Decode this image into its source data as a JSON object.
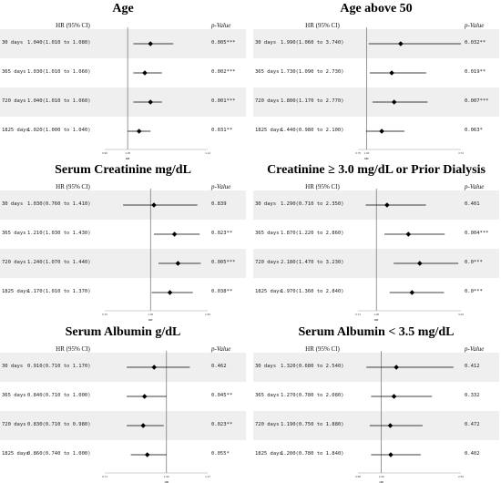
{
  "header": {
    "hr_label": "HR (95% CI)",
    "p_label": "p-Value"
  },
  "row_labels": [
    "30 days",
    "365 days",
    "720 days",
    "1825 days"
  ],
  "chart_data": [
    {
      "type": "forest",
      "title": "Age",
      "xlim": [
        0.96,
        1.14
      ],
      "xticks": [
        "0.96",
        "1.05",
        "1.14"
      ],
      "xlabel": "HR",
      "reference": 1.0,
      "rows": [
        {
          "label": "30 days",
          "hr": 1.04,
          "lo": 1.01,
          "hi": 1.08,
          "ci_text": "1.040(1.010 to 1.080)",
          "p": "0.005***"
        },
        {
          "label": "365 days",
          "hr": 1.03,
          "lo": 1.01,
          "hi": 1.06,
          "ci_text": "1.030(1.010 to 1.060)",
          "p": "0.002***"
        },
        {
          "label": "720 days",
          "hr": 1.04,
          "lo": 1.01,
          "hi": 1.06,
          "ci_text": "1.040(1.010 to 1.060)",
          "p": "0.001***"
        },
        {
          "label": "1825 days",
          "hr": 1.02,
          "lo": 1.0,
          "hi": 1.04,
          "ci_text": "1.020(1.000 to 1.040)",
          "p": "0.031**"
        }
      ]
    },
    {
      "type": "forest",
      "title": "Age above 50",
      "xlim": [
        0.75,
        3.74
      ],
      "xticks": [
        "0.75",
        "1.00",
        "3.74"
      ],
      "xlabel": "HR",
      "reference": 1.0,
      "rows": [
        {
          "label": "30 days",
          "hr": 1.99,
          "lo": 1.06,
          "hi": 3.74,
          "ci_text": "1.990(1.060 to 3.740)",
          "p": "0.032**"
        },
        {
          "label": "365 days",
          "hr": 1.73,
          "lo": 1.09,
          "hi": 2.73,
          "ci_text": "1.730(1.090 to 2.730)",
          "p": "0.019**"
        },
        {
          "label": "720 days",
          "hr": 1.8,
          "lo": 1.17,
          "hi": 2.77,
          "ci_text": "1.800(1.170 to 2.770)",
          "p": "0.007***"
        },
        {
          "label": "1825 days",
          "hr": 1.44,
          "lo": 0.98,
          "hi": 2.1,
          "ci_text": "1.440(0.980 to 2.100)",
          "p": "0.063*"
        }
      ]
    },
    {
      "type": "forest",
      "title": "Serum Creatinine mg/dL",
      "xlim": [
        0.6,
        1.5
      ],
      "xticks": [
        "0.76",
        "1.00",
        "1.50"
      ],
      "xlabel": "HR",
      "reference": 1.0,
      "rows": [
        {
          "label": "30 days",
          "hr": 1.03,
          "lo": 0.76,
          "hi": 1.41,
          "ci_text": "1.030(0.760 to 1.410)",
          "p": "0.839"
        },
        {
          "label": "365 days",
          "hr": 1.21,
          "lo": 1.03,
          "hi": 1.43,
          "ci_text": "1.210(1.030 to 1.430)",
          "p": "0.023**"
        },
        {
          "label": "720 days",
          "hr": 1.24,
          "lo": 1.07,
          "hi": 1.44,
          "ci_text": "1.240(1.070 to 1.440)",
          "p": "0.005***"
        },
        {
          "label": "1825 days",
          "hr": 1.17,
          "lo": 1.01,
          "hi": 1.37,
          "ci_text": "1.170(1.010 to 1.370)",
          "p": "0.038**"
        }
      ]
    },
    {
      "type": "forest",
      "title": "Creatinine ≥ 3.0 mg/dL or Prior Dialysis",
      "xlim": [
        0.5,
        3.3
      ],
      "xticks": [
        "0.71",
        "1.00",
        "3.23"
      ],
      "xlabel": "HR",
      "reference": 1.0,
      "rows": [
        {
          "label": "30 days",
          "hr": 1.29,
          "lo": 0.71,
          "hi": 2.35,
          "ci_text": "1.290(0.710 to 2.350)",
          "p": "0.401"
        },
        {
          "label": "365 days",
          "hr": 1.87,
          "lo": 1.22,
          "hi": 2.86,
          "ci_text": "1.870(1.220 to 2.860)",
          "p": "0.004***"
        },
        {
          "label": "720 days",
          "hr": 2.18,
          "lo": 1.47,
          "hi": 3.23,
          "ci_text": "2.180(1.470 to 3.230)",
          "p": "0.0***"
        },
        {
          "label": "1825 days",
          "hr": 1.97,
          "lo": 1.36,
          "hi": 2.84,
          "ci_text": "1.970(1.360 to 2.840)",
          "p": "0.0***"
        }
      ]
    },
    {
      "type": "forest",
      "title": "Serum Albumin g/dL",
      "xlim": [
        0.55,
        1.3
      ],
      "xticks": [
        "0.71",
        "1.00",
        "1.17"
      ],
      "xlabel": "HR",
      "reference": 1.0,
      "rows": [
        {
          "label": "30 days",
          "hr": 0.91,
          "lo": 0.71,
          "hi": 1.17,
          "ci_text": "0.910(0.710 to 1.170)",
          "p": "0.462"
        },
        {
          "label": "365 days",
          "hr": 0.84,
          "lo": 0.71,
          "hi": 1.0,
          "ci_text": "0.840(0.710 to 1.000)",
          "p": "0.045**"
        },
        {
          "label": "720 days",
          "hr": 0.83,
          "lo": 0.71,
          "hi": 0.98,
          "ci_text": "0.830(0.710 to 0.980)",
          "p": "0.023**"
        },
        {
          "label": "1825 days",
          "hr": 0.86,
          "lo": 0.74,
          "hi": 1.0,
          "ci_text": "0.860(0.740 to 1.000)",
          "p": "0.055*"
        }
      ]
    },
    {
      "type": "forest",
      "title": "Serum Albumin < 3.5 mg/dL",
      "xlim": [
        0.5,
        2.7
      ],
      "xticks": [
        "0.68",
        "1.00",
        "2.54"
      ],
      "xlabel": "HR",
      "reference": 1.0,
      "rows": [
        {
          "label": "30 days",
          "hr": 1.32,
          "lo": 0.68,
          "hi": 2.54,
          "ci_text": "1.320(0.680 to 2.540)",
          "p": "0.412"
        },
        {
          "label": "365 days",
          "hr": 1.27,
          "lo": 0.78,
          "hi": 2.08,
          "ci_text": "1.270(0.780 to 2.080)",
          "p": "0.332"
        },
        {
          "label": "720 days",
          "hr": 1.19,
          "lo": 0.75,
          "hi": 1.88,
          "ci_text": "1.190(0.750 to 1.880)",
          "p": "0.472"
        },
        {
          "label": "1825 days",
          "hr": 1.2,
          "lo": 0.78,
          "hi": 1.84,
          "ci_text": "1.200(0.780 to 1.840)",
          "p": "0.402"
        }
      ]
    }
  ]
}
